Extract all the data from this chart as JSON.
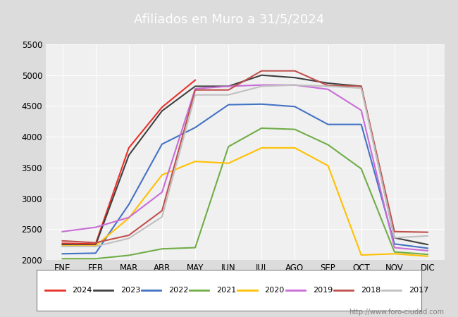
{
  "title": "Afiliados en Muro a 31/5/2024",
  "ylim": [
    2000,
    5500
  ],
  "yticks": [
    2000,
    2500,
    3000,
    3500,
    4000,
    4500,
    5000,
    5500
  ],
  "months": [
    "ENE",
    "FEB",
    "MAR",
    "ABR",
    "MAY",
    "JUN",
    "JUL",
    "AGO",
    "SEP",
    "OCT",
    "NOV",
    "DIC"
  ],
  "watermark": "http://www.foro-ciudad.com",
  "series": {
    "2024": {
      "color": "#e8312a",
      "data": [
        2270,
        2260,
        3820,
        4480,
        4920,
        null,
        null,
        null,
        null,
        null,
        null,
        null
      ]
    },
    "2023": {
      "color": "#404040",
      "data": [
        2250,
        2240,
        3700,
        4420,
        4820,
        4820,
        5000,
        4960,
        4870,
        4820,
        2360,
        2250
      ]
    },
    "2022": {
      "color": "#4472c4",
      "data": [
        2100,
        2110,
        2900,
        3880,
        4150,
        4520,
        4530,
        4490,
        4200,
        4200,
        2260,
        2190
      ]
    },
    "2021": {
      "color": "#70ad47",
      "data": [
        2020,
        2020,
        2075,
        2180,
        2200,
        3840,
        4140,
        4120,
        3870,
        3480,
        2130,
        2090
      ]
    },
    "2020": {
      "color": "#ffc000",
      "data": [
        2230,
        2230,
        2680,
        3380,
        3600,
        3570,
        3820,
        3820,
        3530,
        2080,
        2100,
        2060
      ]
    },
    "2019": {
      "color": "#c86dd7",
      "data": [
        2460,
        2530,
        2690,
        3100,
        4780,
        4820,
        4840,
        4840,
        4770,
        4430,
        2200,
        2150
      ]
    },
    "2018": {
      "color": "#c0504d",
      "data": [
        2310,
        2280,
        2400,
        2800,
        4760,
        4760,
        5070,
        5070,
        4830,
        4820,
        2460,
        2450
      ]
    },
    "2017": {
      "color": "#c0c0c0",
      "data": [
        2220,
        2220,
        2350,
        2700,
        4680,
        4680,
        4820,
        4840,
        4820,
        4790,
        2360,
        2390
      ]
    }
  },
  "series_order": [
    "2024",
    "2023",
    "2022",
    "2021",
    "2020",
    "2019",
    "2018",
    "2017"
  ]
}
